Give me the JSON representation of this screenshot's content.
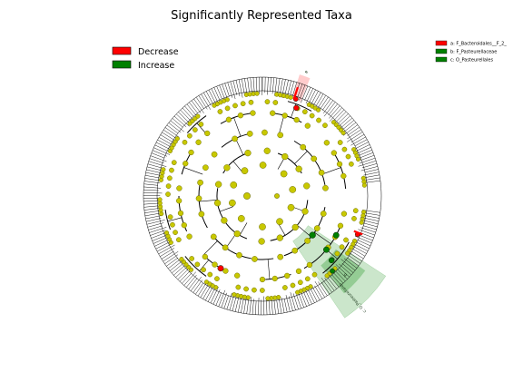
{
  "figure": {
    "title": "Significantly Represented Taxa"
  },
  "colors": {
    "background": "#ffffff",
    "decrease": "#ff0000",
    "increase": "#008000",
    "node_default": "#c8c800",
    "edge": "#000000",
    "wedge_increase": "#2e9b2e",
    "wedge_decrease": "#ff9a9a"
  },
  "main_legend": {
    "items": [
      {
        "label": "Decrease",
        "color": "#ff0000"
      },
      {
        "label": "Increase",
        "color": "#008000"
      }
    ]
  },
  "clade_legend": {
    "items": [
      {
        "key": "a",
        "label": "a: F_Bacteroidales__F_2_",
        "color": "#ff0000"
      },
      {
        "key": "b",
        "label": "b: F_Pasteurellaceae",
        "color": "#008000"
      },
      {
        "key": "c",
        "label": "c: O_Pasteurellales",
        "color": "#008000"
      }
    ]
  },
  "wedge_labels": [
    {
      "text": "a",
      "color": "#ff9a9a"
    },
    {
      "text": "b",
      "color": "#2e9b2e"
    },
    {
      "text": "c: O_Pasteurellales",
      "color": "#2e9b2e"
    }
  ]
}
